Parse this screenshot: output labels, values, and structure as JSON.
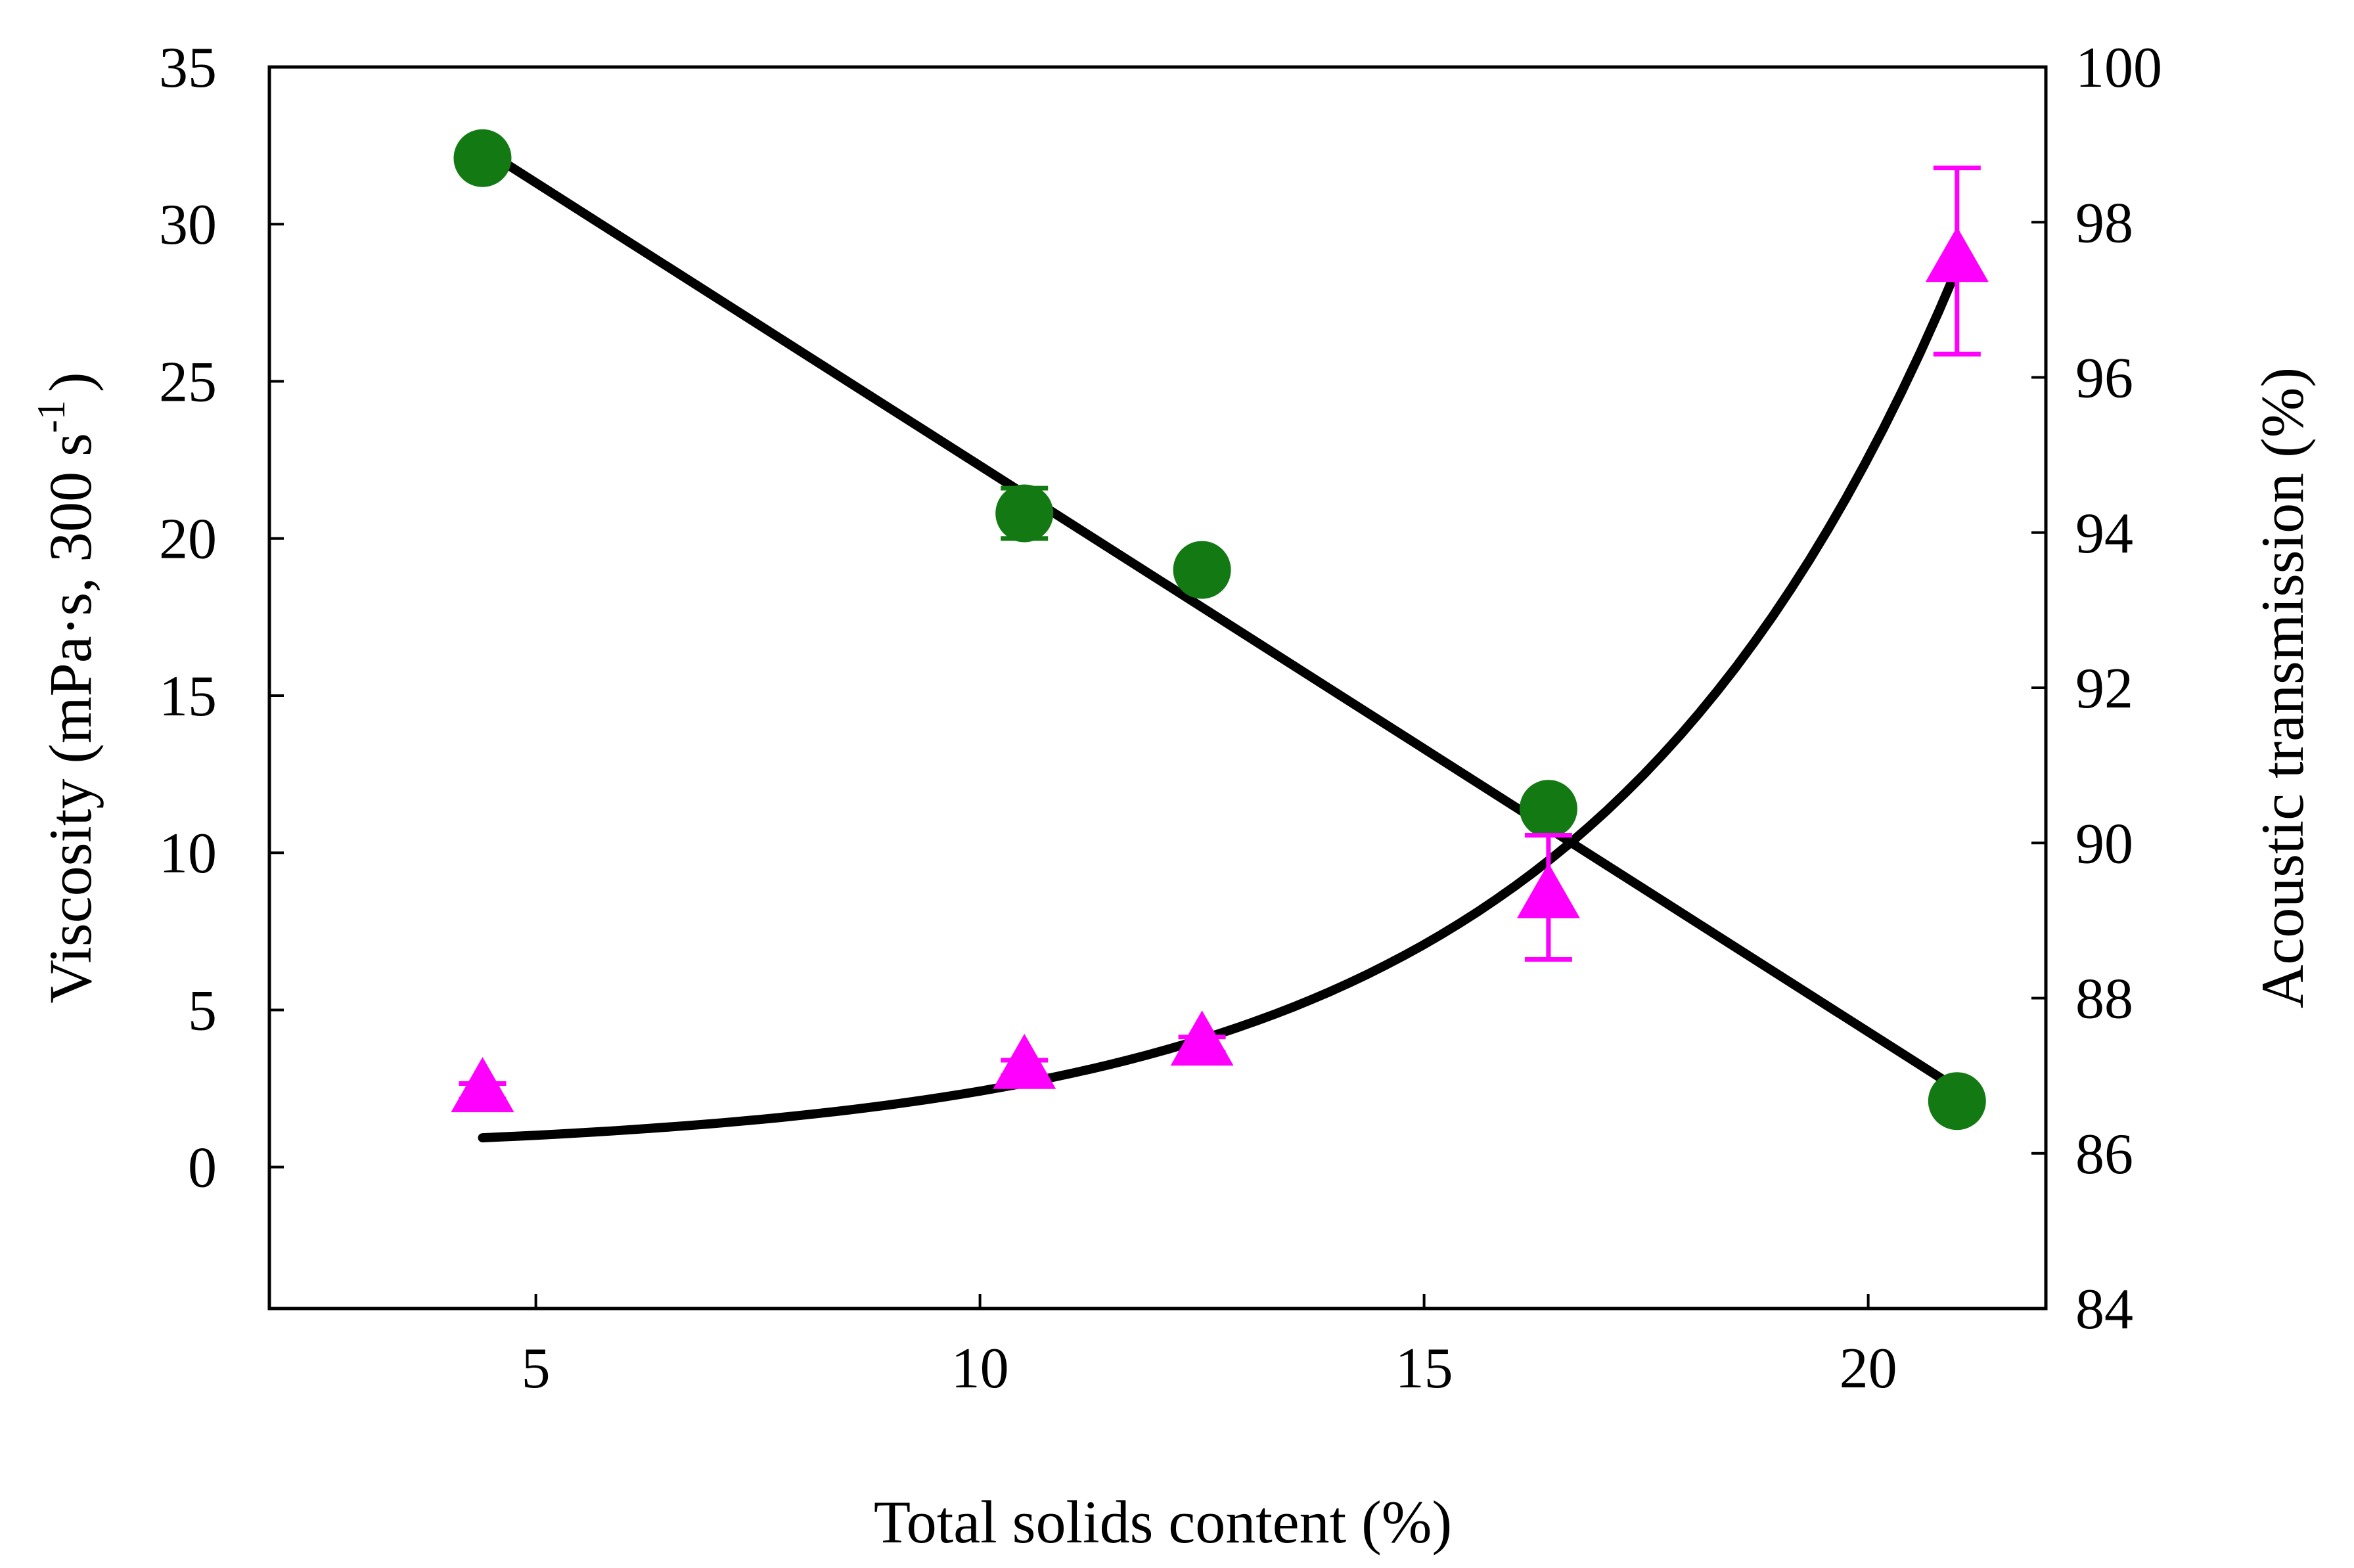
{
  "chart_data": {
    "type": "scatter",
    "title": "",
    "xlabel": "Total solids content (%)",
    "ylabel_left": {
      "main": "Viscosity (mPa·s, 300 s",
      "sup": "-1",
      "close": ")"
    },
    "ylabel_right": "Acoustic transmission (%)",
    "xlim": [
      2,
      22
    ],
    "ylim_left": [
      -4.5,
      35
    ],
    "ylim_right": [
      84,
      100
    ],
    "x_ticks": [
      5,
      10,
      15,
      20
    ],
    "x_tick_labels": [
      "5",
      "10",
      "15",
      "20"
    ],
    "y_left_ticks": [
      0,
      5,
      10,
      15,
      20,
      25,
      30,
      35
    ],
    "y_left_tick_labels": [
      "0",
      "5",
      "10",
      "15",
      "20",
      "25",
      "30",
      "35"
    ],
    "y_right_ticks": [
      84,
      86,
      88,
      90,
      92,
      94,
      96,
      98,
      100
    ],
    "y_right_tick_labels": [
      "84",
      "86",
      "88",
      "90",
      "92",
      "94",
      "96",
      "98",
      "100"
    ],
    "series": [
      {
        "name": "Viscosity",
        "axis": "left",
        "marker": "circle",
        "color": "#137A13",
        "x": [
          4.4,
          10.5,
          12.5,
          16.4,
          21.0
        ],
        "y": [
          32.1,
          20.8,
          19.0,
          11.4,
          2.1
        ],
        "err": [
          0.3,
          0.8,
          0.3,
          0.4,
          0.2
        ]
      },
      {
        "name": "Acoustic transmission",
        "axis": "right",
        "marker": "triangle",
        "color": "#FF00FF",
        "x": [
          4.4,
          10.5,
          12.5,
          16.4,
          21.0
        ],
        "y": [
          86.8,
          87.1,
          87.4,
          89.3,
          97.5
        ],
        "err": [
          0.1,
          0.1,
          0.1,
          0.8,
          1.2
        ]
      }
    ],
    "fits": [
      {
        "name": "Viscosity linear fit",
        "axis": "left",
        "type": "linear",
        "x_range": [
          4.4,
          21.0
        ],
        "y_start": 32.4,
        "y_end": 2.5,
        "color": "#000000"
      },
      {
        "name": "Acoustic transmission exponential fit",
        "axis": "right",
        "type": "exponential",
        "x_range": [
          4.4,
          21.0
        ],
        "y_start": 86.2,
        "y_end": 97.4,
        "rate": 0.24,
        "color": "#000000"
      }
    ]
  }
}
